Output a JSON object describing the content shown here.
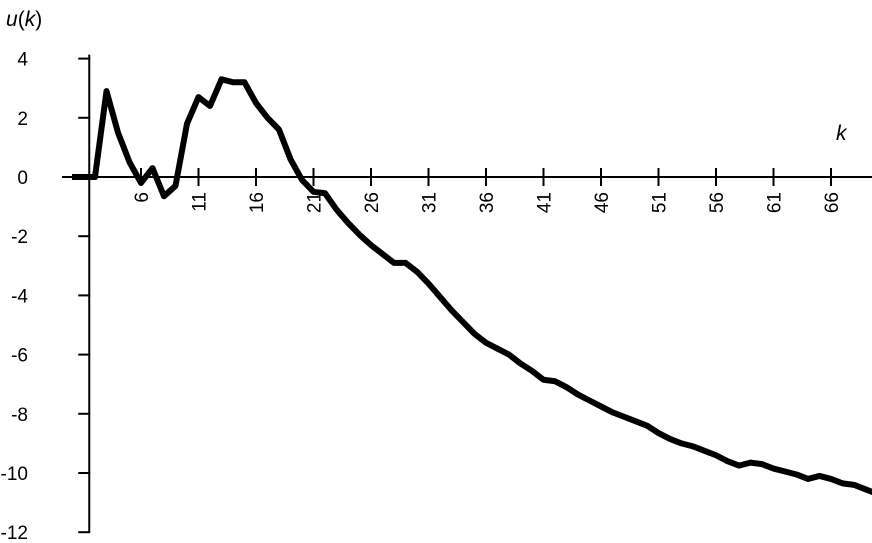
{
  "chart_data": {
    "type": "line",
    "title": "",
    "ylabel_var": "u",
    "ylabel_arg": "k",
    "xlabel": "k",
    "ylim": [
      -12,
      4
    ],
    "xlim": [
      1,
      71
    ],
    "y_ticks": [
      4,
      2,
      0,
      -2,
      -4,
      -6,
      -8,
      -10,
      -12
    ],
    "x_ticks": [
      6,
      11,
      16,
      21,
      26,
      31,
      36,
      41,
      46,
      51,
      56,
      61,
      66
    ],
    "grid": false,
    "legend": "none",
    "line_color": "#000000",
    "series": [
      {
        "x": [
          1,
          2,
          3,
          4,
          5,
          6,
          7,
          8,
          9,
          10,
          11,
          12,
          13,
          14,
          15,
          16,
          17,
          18,
          19,
          20,
          21,
          22,
          23,
          24,
          25,
          26,
          27,
          28,
          29,
          30,
          31,
          32,
          33,
          34,
          35,
          36,
          37,
          38,
          39,
          40,
          41,
          42,
          43,
          44,
          45,
          46,
          47,
          48,
          49,
          50,
          51,
          52,
          53,
          54,
          55,
          56,
          57,
          58,
          59,
          60,
          61,
          62,
          63,
          64,
          65,
          66,
          67,
          68,
          69,
          70,
          71
        ],
        "y": [
          0,
          0,
          0,
          2.9,
          1.5,
          0.5,
          -0.2,
          0.3,
          -0.65,
          -0.3,
          1.8,
          2.7,
          2.4,
          3.3,
          3.2,
          3.2,
          2.5,
          2.0,
          1.6,
          0.6,
          -0.1,
          -0.5,
          -0.55,
          -1.1,
          -1.55,
          -1.95,
          -2.3,
          -2.6,
          -2.9,
          -2.9,
          -3.2,
          -3.6,
          -4.05,
          -4.5,
          -4.9,
          -5.3,
          -5.6,
          -5.8,
          -6.0,
          -6.3,
          -6.55,
          -6.85,
          -6.9,
          -7.1,
          -7.35,
          -7.55,
          -7.75,
          -7.95,
          -8.1,
          -8.25,
          -8.4,
          -8.65,
          -8.85,
          -9.0,
          -9.1,
          -9.25,
          -9.4,
          -9.6,
          -9.75,
          -9.65,
          -9.7,
          -9.85,
          -9.95,
          -10.05,
          -10.2,
          -10.1,
          -10.2,
          -10.35,
          -10.4,
          -10.55,
          -10.7
        ]
      }
    ]
  }
}
